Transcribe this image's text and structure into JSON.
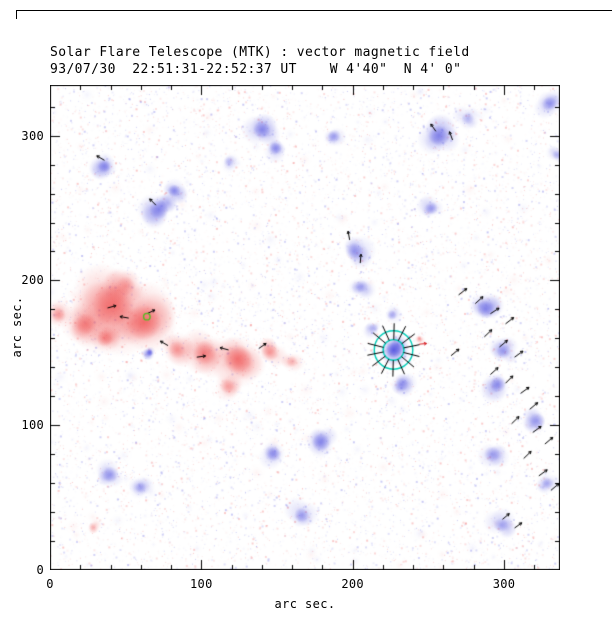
{
  "chart_data": {
    "type": "heatmap",
    "title": "Solar Flare Telescope (MTK) : vector magnetic field",
    "subtitle": "93/07/30  22:51:31-22:52:37 UT    W 4'40\"  N 4' 0\"",
    "xlabel": "arc sec.",
    "ylabel": "arc sec.",
    "xlim": [
      0,
      337
    ],
    "ylim": [
      0,
      335
    ],
    "xticks": [
      0,
      100,
      200,
      300
    ],
    "yticks": [
      0,
      100,
      200,
      300
    ],
    "minor_tick_step": 20,
    "grid": false,
    "legend": "none",
    "polarity_colors": {
      "positive": "#ef4d4d",
      "negative": "#4a4ade"
    },
    "positive_regions": [
      [
        42,
        183,
        26,
        0.7
      ],
      [
        62,
        171,
        22,
        0.8
      ],
      [
        24,
        170,
        13,
        0.5
      ],
      [
        6,
        176,
        9,
        0.45
      ],
      [
        84,
        152,
        11,
        0.5
      ],
      [
        102,
        150,
        15,
        0.6
      ],
      [
        124,
        146,
        18,
        0.7
      ],
      [
        145,
        150,
        11,
        0.55
      ],
      [
        117,
        127,
        9,
        0.4
      ],
      [
        160,
        144,
        7,
        0.35
      ],
      [
        28,
        30,
        5,
        0.3
      ],
      [
        244,
        160,
        3,
        0.4
      ],
      [
        50,
        196,
        12,
        0.5
      ],
      [
        36,
        160,
        10,
        0.45
      ]
    ],
    "negative_regions": [
      [
        36,
        279,
        8,
        0.5
      ],
      [
        72,
        249,
        12,
        0.65
      ],
      [
        82,
        262,
        8,
        0.5
      ],
      [
        140,
        304,
        11,
        0.6
      ],
      [
        149,
        291,
        8,
        0.45
      ],
      [
        201,
        220,
        11,
        0.5
      ],
      [
        206,
        196,
        8,
        0.4
      ],
      [
        257,
        300,
        13,
        0.6
      ],
      [
        276,
        312,
        8,
        0.4
      ],
      [
        330,
        322,
        9,
        0.5
      ],
      [
        335,
        287,
        6,
        0.35
      ],
      [
        288,
        180,
        11,
        0.55
      ],
      [
        300,
        151,
        9,
        0.5
      ],
      [
        296,
        128,
        10,
        0.55
      ],
      [
        322,
        103,
        10,
        0.5
      ],
      [
        292,
        80,
        10,
        0.5
      ],
      [
        329,
        60,
        7,
        0.4
      ],
      [
        179,
        88,
        11,
        0.55
      ],
      [
        148,
        80,
        9,
        0.45
      ],
      [
        40,
        66,
        10,
        0.5
      ],
      [
        60,
        57,
        7,
        0.35
      ],
      [
        166,
        38,
        9,
        0.45
      ],
      [
        298,
        31,
        9,
        0.45
      ],
      [
        227,
        152,
        10,
        0.95
      ],
      [
        232,
        128,
        9,
        0.5
      ],
      [
        214,
        167,
        6,
        0.35
      ],
      [
        66,
        150,
        4,
        0.8
      ],
      [
        252,
        250,
        8,
        0.4
      ],
      [
        188,
        300,
        8,
        0.45
      ],
      [
        118,
        282,
        6,
        0.25
      ],
      [
        226,
        176,
        6,
        0.35
      ]
    ],
    "vectors": [
      [
        38,
        181,
        15,
        6
      ],
      [
        52,
        174,
        170,
        6
      ],
      [
        64,
        177,
        25,
        6
      ],
      [
        78,
        155,
        150,
        6
      ],
      [
        97,
        147,
        8,
        6
      ],
      [
        118,
        152,
        165,
        6
      ],
      [
        138,
        153,
        35,
        6
      ],
      [
        36,
        283,
        150,
        6
      ],
      [
        70,
        252,
        135,
        6
      ],
      [
        198,
        228,
        100,
        6
      ],
      [
        205,
        212,
        85,
        6
      ],
      [
        255,
        303,
        125,
        6
      ],
      [
        266,
        297,
        110,
        6
      ],
      [
        270,
        190,
        38,
        7
      ],
      [
        281,
        184,
        42,
        7
      ],
      [
        291,
        177,
        33,
        7
      ],
      [
        301,
        170,
        38,
        7
      ],
      [
        287,
        161,
        44,
        7
      ],
      [
        297,
        154,
        40,
        7
      ],
      [
        307,
        147,
        36,
        7
      ],
      [
        291,
        135,
        42,
        7
      ],
      [
        301,
        129,
        45,
        7
      ],
      [
        311,
        122,
        36,
        7
      ],
      [
        317,
        111,
        40,
        7
      ],
      [
        305,
        101,
        44,
        7
      ],
      [
        319,
        95,
        36,
        7
      ],
      [
        327,
        87,
        40,
        7
      ],
      [
        313,
        77,
        44,
        7
      ],
      [
        323,
        65,
        36,
        7
      ],
      [
        331,
        55,
        40,
        7
      ],
      [
        265,
        148,
        40,
        7
      ],
      [
        299,
        35,
        40,
        6
      ],
      [
        307,
        29,
        36,
        6
      ],
      [
        244,
        156,
        5,
        5,
        "#dd2222"
      ]
    ],
    "highlight": {
      "x": 227,
      "y": 152,
      "ring_radii": [
        13,
        7
      ],
      "spokes": 14,
      "spoke_inner": 7,
      "spoke_outer": 18,
      "ring_color": "#00ccb8"
    },
    "marker": {
      "x": 64,
      "y": 175,
      "r": 2.2,
      "color": "#55bb22"
    }
  }
}
